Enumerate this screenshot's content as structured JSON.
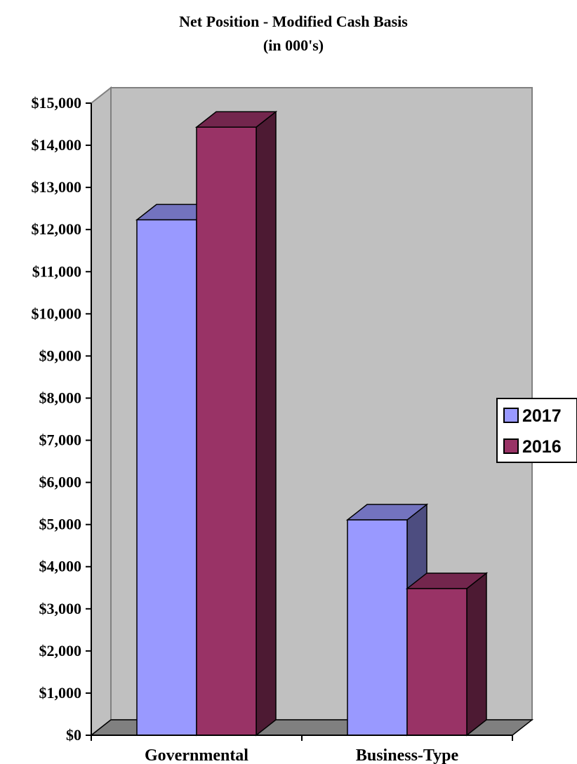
{
  "chart_data": {
    "type": "bar",
    "title": "Net Position - Modified Cash Basis",
    "subtitle": "(in 000's)",
    "categories": [
      "Governmental",
      "Business-Type"
    ],
    "series": [
      {
        "name": "2017",
        "values": [
          12230,
          5110
        ],
        "color": "#9999FF"
      },
      {
        "name": "2016",
        "values": [
          14430,
          3480
        ],
        "color": "#993366"
      }
    ],
    "ylim": [
      0,
      15000
    ],
    "yticks": [
      {
        "value": 0,
        "label": "$0"
      },
      {
        "value": 1000,
        "label": "$1,000"
      },
      {
        "value": 2000,
        "label": "$2,000"
      },
      {
        "value": 3000,
        "label": "$3,000"
      },
      {
        "value": 4000,
        "label": "$4,000"
      },
      {
        "value": 5000,
        "label": "$5,000"
      },
      {
        "value": 6000,
        "label": "$6,000"
      },
      {
        "value": 7000,
        "label": "$7,000"
      },
      {
        "value": 8000,
        "label": "$8,000"
      },
      {
        "value": 9000,
        "label": "$9,000"
      },
      {
        "value": 10000,
        "label": "$10,000"
      },
      {
        "value": 11000,
        "label": "$11,000"
      },
      {
        "value": 12000,
        "label": "$12,000"
      },
      {
        "value": 13000,
        "label": "$13,000"
      },
      {
        "value": 14000,
        "label": "$14,000"
      },
      {
        "value": 15000,
        "label": "$15,000"
      }
    ],
    "grid": false,
    "style": "3d-clustered-column",
    "legend": {
      "position": "right"
    },
    "colors": {
      "wall": "#C0C0C0",
      "floor": "#808080",
      "axis": "#000000"
    }
  }
}
